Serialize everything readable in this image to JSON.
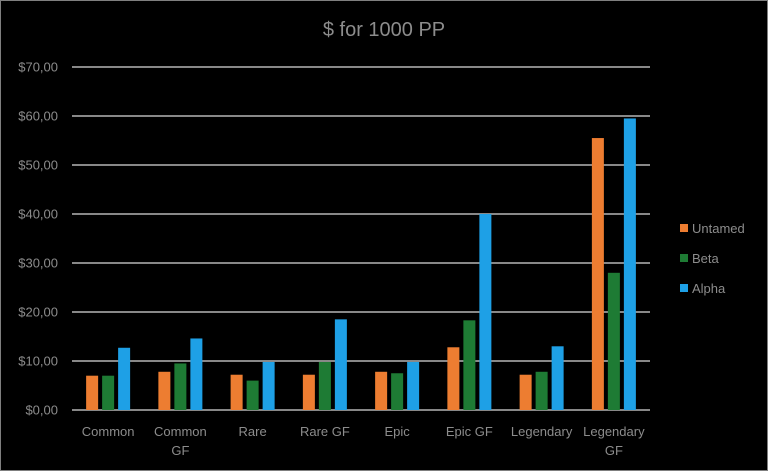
{
  "chart_data": {
    "type": "bar",
    "title": "$ for 1000 PP",
    "xlabel": "",
    "ylabel": "",
    "ylim": [
      0,
      70
    ],
    "yticks": [
      0,
      10,
      20,
      30,
      40,
      50,
      60,
      70
    ],
    "ytick_labels": [
      "$0,00",
      "$10,00",
      "$20,00",
      "$30,00",
      "$40,00",
      "$50,00",
      "$60,00",
      "$70,00"
    ],
    "grid": true,
    "legend_position": "right",
    "categories": [
      "Common",
      "Common GF",
      "Rare",
      "Rare GF",
      "Epic",
      "Epic GF",
      "Legendary",
      "Legendary GF"
    ],
    "category_lines": [
      [
        "Common"
      ],
      [
        "Common",
        "GF"
      ],
      [
        "Rare"
      ],
      [
        "Rare GF"
      ],
      [
        "Epic"
      ],
      [
        "Epic GF"
      ],
      [
        "Legendary"
      ],
      [
        "Legendary",
        "GF"
      ]
    ],
    "series": [
      {
        "name": "Untamed",
        "color": "#ed7d31",
        "values": [
          7.0,
          7.8,
          7.2,
          7.2,
          7.8,
          12.8,
          7.2,
          55.5
        ]
      },
      {
        "name": "Beta",
        "color": "#1e7b34",
        "values": [
          7.0,
          9.5,
          6.0,
          9.8,
          7.5,
          18.3,
          7.8,
          28.0
        ]
      },
      {
        "name": "Alpha",
        "color": "#1ea0e6",
        "values": [
          12.7,
          14.6,
          9.8,
          18.5,
          9.8,
          40.0,
          13.0,
          59.5
        ]
      }
    ]
  }
}
